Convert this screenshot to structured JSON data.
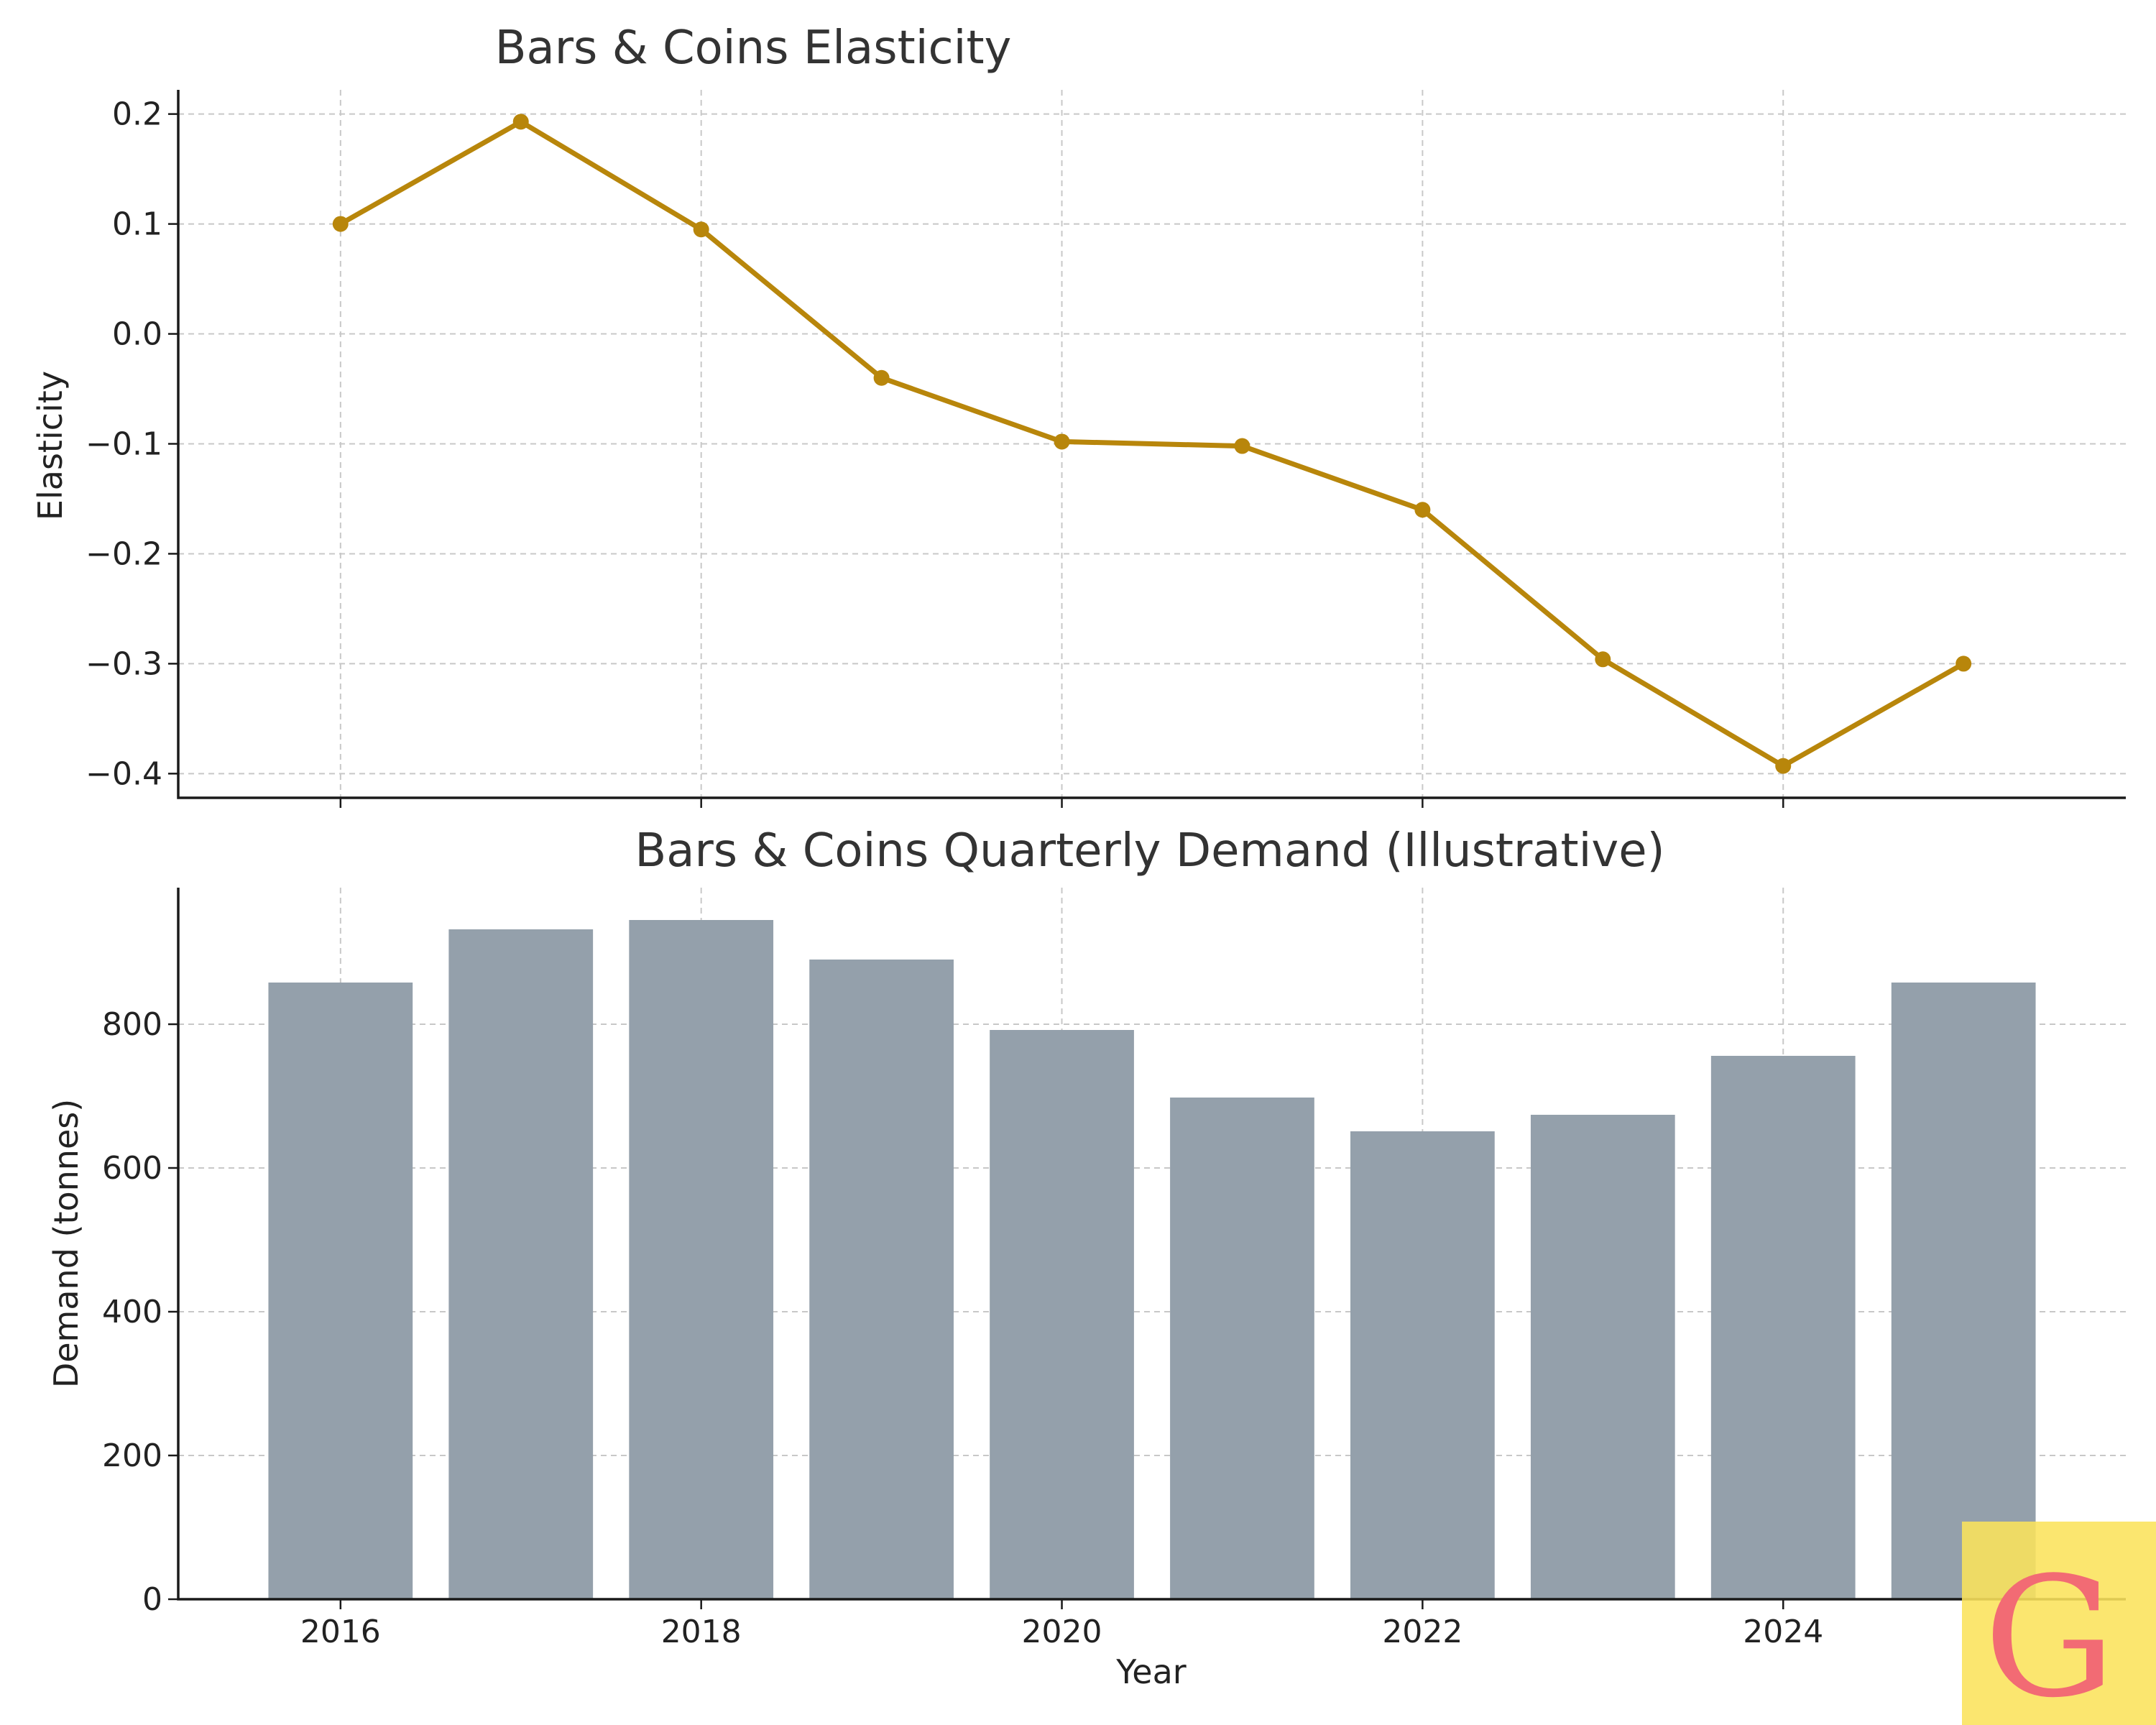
{
  "colors": {
    "line": "#b8860b",
    "bar": "#94a0ab",
    "logo_bg": "#fbe35b",
    "logo_letter": "#f26b74"
  },
  "logo": {
    "letter": "G"
  },
  "chart_data": [
    {
      "type": "line",
      "title": "Bars & Coins Elasticity",
      "xlabel": "",
      "ylabel": "Elasticity",
      "x": [
        2016,
        2017,
        2018,
        2019,
        2020,
        2021,
        2022,
        2023,
        2024,
        2025
      ],
      "values": [
        0.1,
        0.193,
        0.095,
        -0.04,
        -0.098,
        -0.102,
        -0.16,
        -0.296,
        -0.393,
        -0.3
      ],
      "xlim": [
        2015.1,
        2025.9
      ],
      "ylim": [
        -0.422,
        0.222
      ],
      "x_ticks": [
        2016,
        2018,
        2020,
        2022,
        2024
      ],
      "y_ticks": [
        0.2,
        0.1,
        0.0,
        -0.1,
        -0.2,
        -0.3,
        -0.4
      ],
      "y_tick_labels": [
        "0.2",
        "0.1",
        "0.0",
        "−0.1",
        "−0.2",
        "−0.3",
        "−0.4"
      ],
      "grid": true,
      "marker": "circle"
    },
    {
      "type": "bar",
      "title": "Bars & Coins Quarterly Demand (Illustrative)",
      "xlabel": "Year",
      "ylabel": "Demand (tonnes)",
      "categories": [
        2016,
        2017,
        2018,
        2019,
        2020,
        2021,
        2022,
        2023,
        2024,
        2025
      ],
      "values": [
        858,
        932,
        945,
        890,
        792,
        698,
        651,
        674,
        756,
        858
      ],
      "xlim": [
        2015.1,
        2025.9
      ],
      "ylim": [
        0,
        990
      ],
      "x_ticks": [
        2016,
        2018,
        2020,
        2022,
        2024
      ],
      "x_tick_labels": [
        "2016",
        "2018",
        "2020",
        "2022",
        "2024"
      ],
      "y_ticks": [
        0,
        200,
        400,
        600,
        800
      ],
      "y_tick_labels": [
        "0",
        "200",
        "400",
        "600",
        "800"
      ],
      "grid": true
    }
  ]
}
